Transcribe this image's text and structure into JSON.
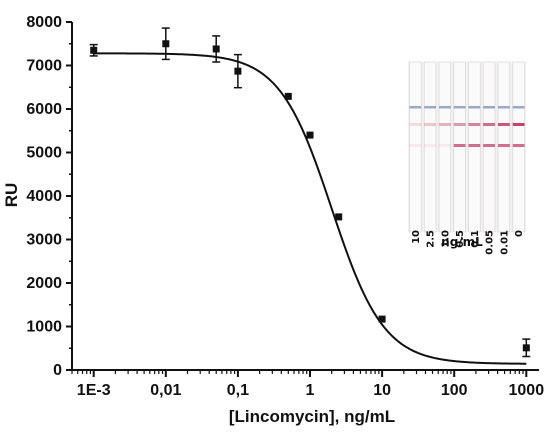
{
  "chart_data": {
    "type": "scatter",
    "x_scale": "log",
    "xlabel": "[Lincomycin], ng/mL",
    "ylabel": "RU",
    "xlim": [
      0.0005,
      1500
    ],
    "ylim": [
      0,
      8000
    ],
    "x_ticks": [
      {
        "value": 0.001,
        "label": "1E-3"
      },
      {
        "value": 0.01,
        "label": "0,01"
      },
      {
        "value": 0.1,
        "label": "0,1"
      },
      {
        "value": 1,
        "label": "1"
      },
      {
        "value": 10,
        "label": "10"
      },
      {
        "value": 100,
        "label": "100"
      },
      {
        "value": 1000,
        "label": "1000"
      }
    ],
    "y_ticks": [
      0,
      1000,
      2000,
      3000,
      4000,
      5000,
      6000,
      7000,
      8000
    ],
    "series": [
      {
        "points": [
          {
            "x": 0.001,
            "y": 7350,
            "err": 130
          },
          {
            "x": 0.01,
            "y": 7500,
            "err": 360
          },
          {
            "x": 0.05,
            "y": 7380,
            "err": 300
          },
          {
            "x": 0.1,
            "y": 6870,
            "err": 380
          },
          {
            "x": 0.5,
            "y": 6290,
            "err": 0
          },
          {
            "x": 1,
            "y": 5400,
            "err": 0
          },
          {
            "x": 2.5,
            "y": 3520,
            "err": 0
          },
          {
            "x": 10,
            "y": 1170,
            "err": 0
          },
          {
            "x": 1000,
            "y": 510,
            "err": 200
          }
        ]
      }
    ],
    "fit": {
      "model": "4PL",
      "top": 7280,
      "bottom": 140,
      "ic50": 2.0,
      "hill": 1.2
    },
    "grid": false
  },
  "inset": {
    "strip_labels": [
      "10",
      "2.5",
      "1.0",
      "0.5",
      "0.1",
      "0.05",
      "0.01",
      "0"
    ],
    "unit_label": "ng/mL",
    "colors": {
      "control_line": "#7b8fb5",
      "test_line": "#c0305a",
      "membrane": "#f3f1f2"
    }
  }
}
